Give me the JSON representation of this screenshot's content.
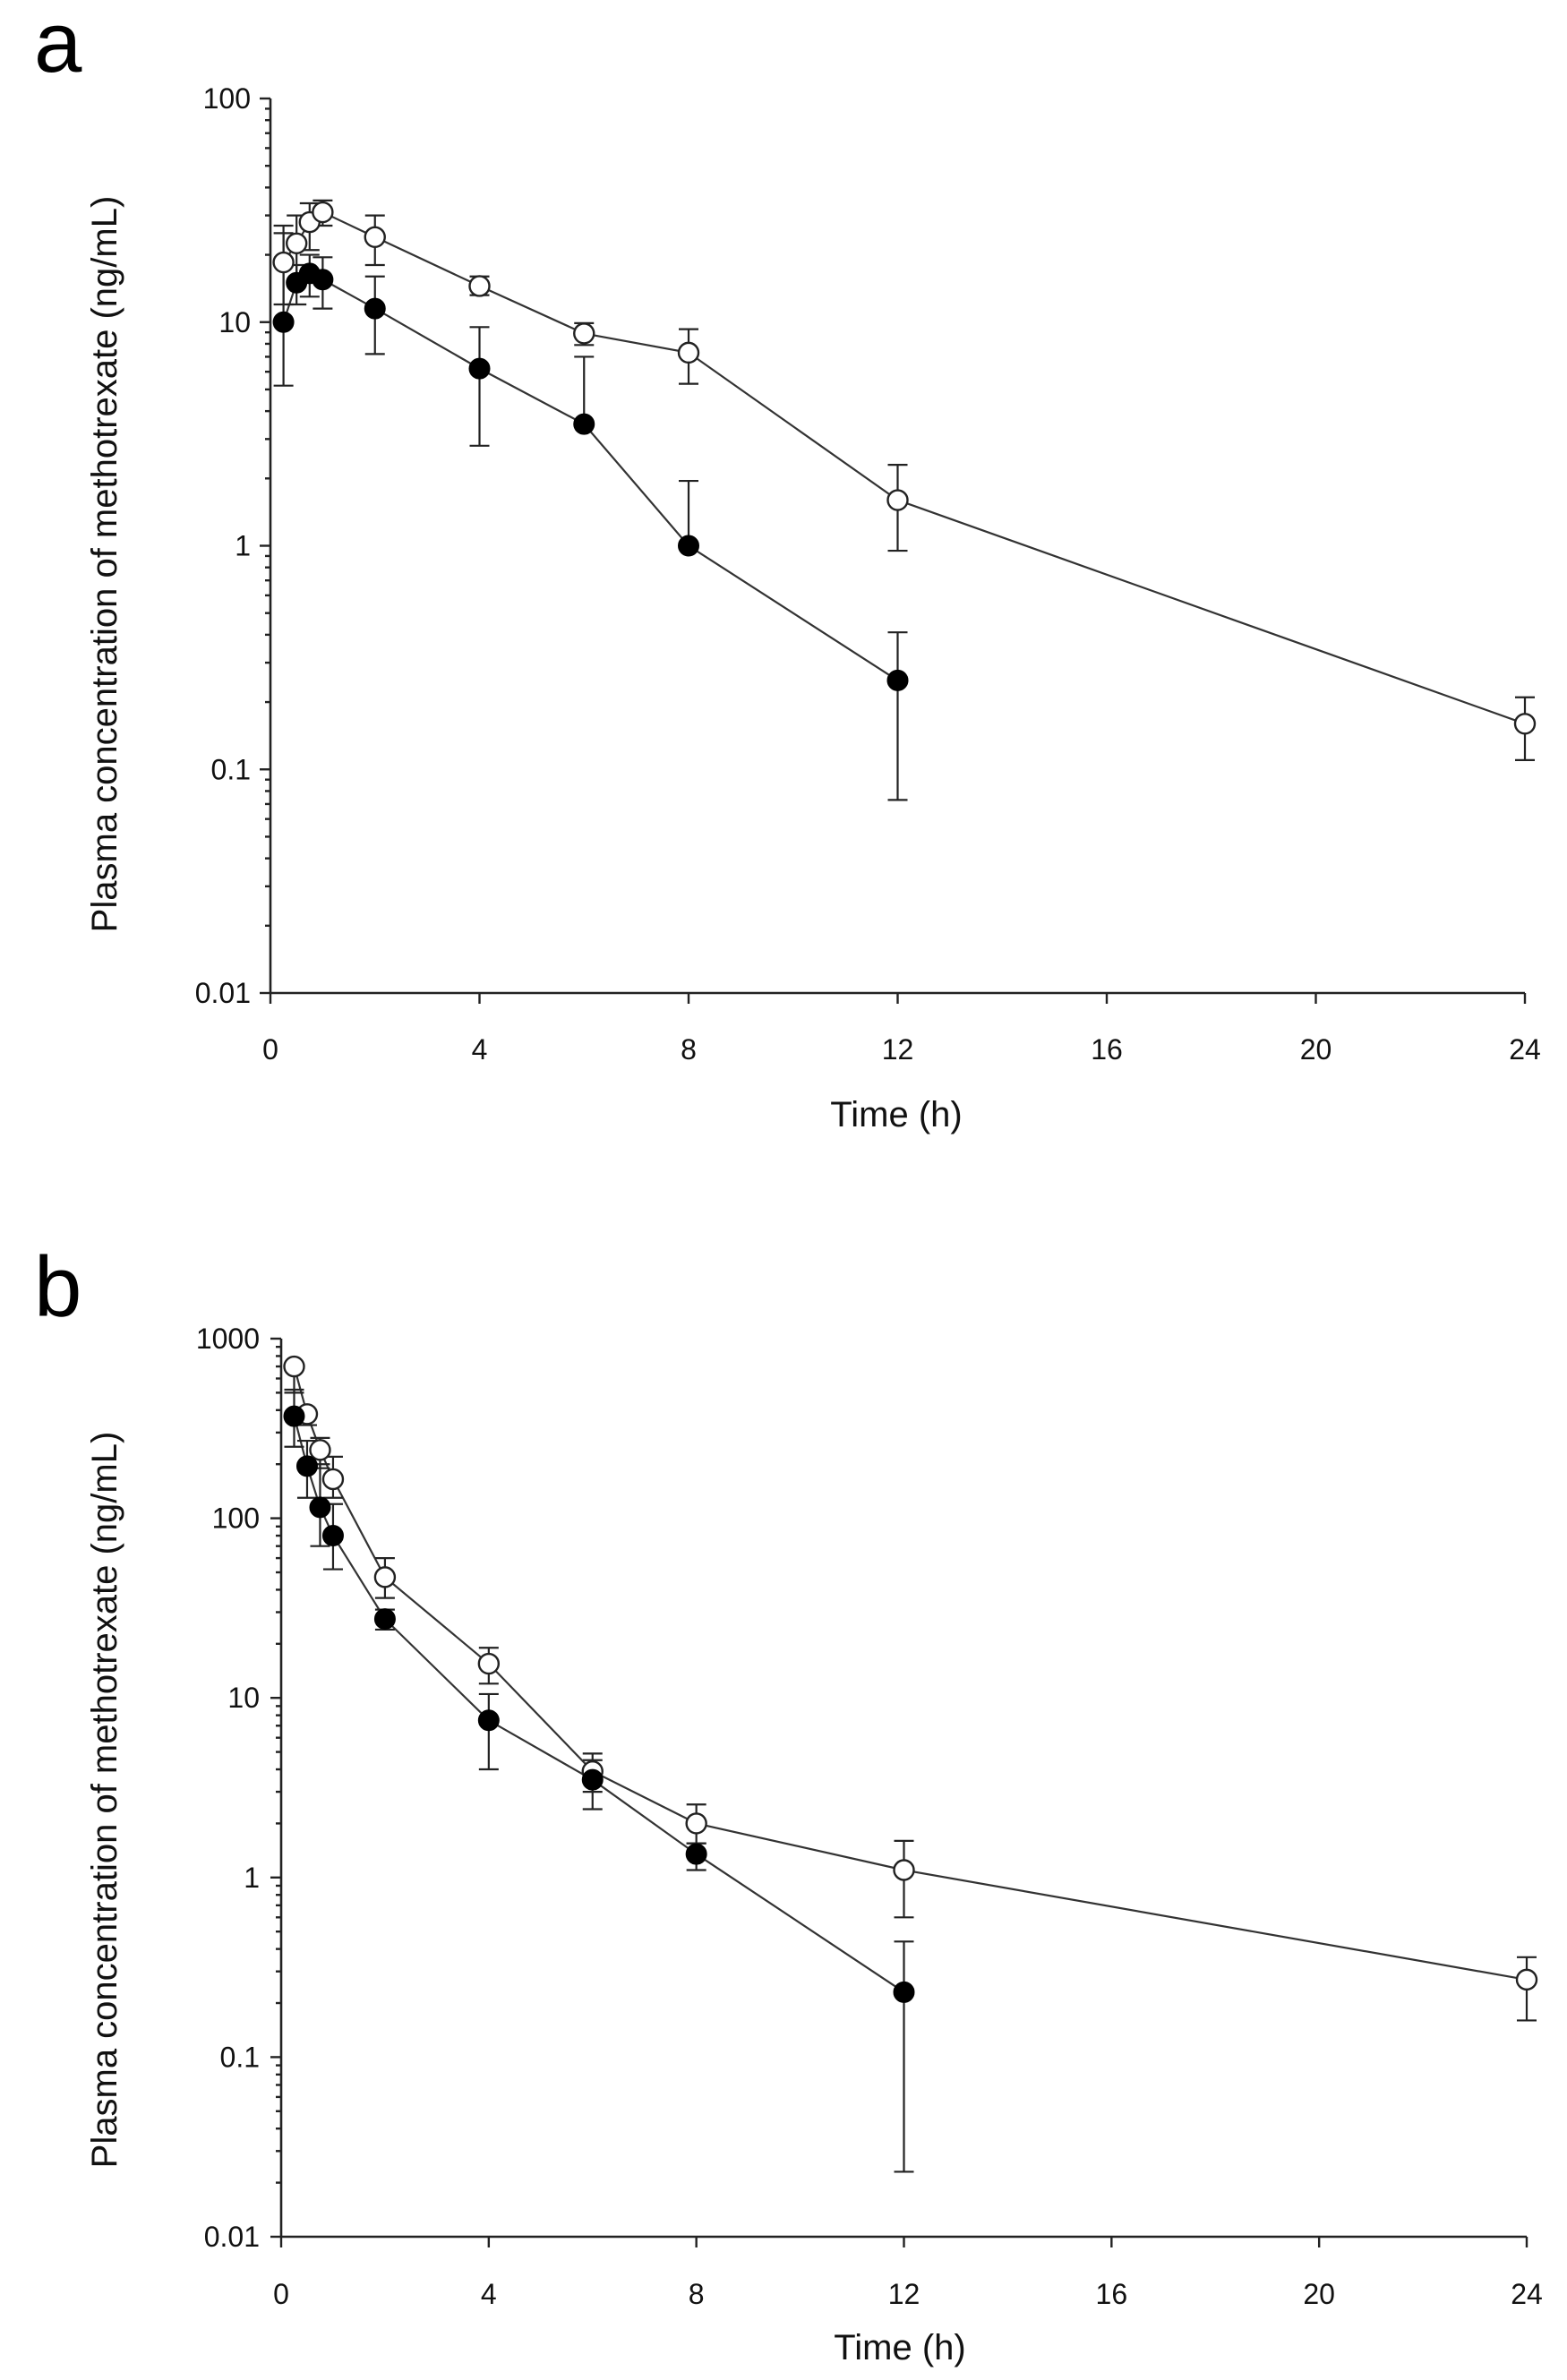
{
  "chart_data": [
    {
      "type": "line",
      "panel_label": "a",
      "xlabel": "Time (h)",
      "ylabel": "Plasma concentration of methotrexate (ng/mL)",
      "y_scale": "log",
      "ylim": [
        0.01,
        100
      ],
      "xlim": [
        0,
        24
      ],
      "x_ticks": [
        0,
        4,
        8,
        12,
        16,
        20,
        24
      ],
      "y_ticks": [
        0.01,
        0.1,
        1,
        10,
        100
      ],
      "y_tick_labels": [
        "0.01",
        "0.1",
        "1",
        "10",
        "100"
      ],
      "series": [
        {
          "name": "open circles",
          "marker": "open",
          "x": [
            0.25,
            0.5,
            0.75,
            1,
            2,
            4,
            6,
            8,
            12,
            24
          ],
          "y": [
            18.5,
            22.5,
            28,
            31,
            24,
            14.5,
            8.9,
            7.3,
            1.6,
            0.16
          ],
          "err_low": [
            12,
            15,
            21,
            27,
            18,
            13.2,
            7.9,
            5.3,
            0.95,
            0.11
          ],
          "err_high": [
            25,
            30,
            34,
            35,
            30,
            16,
            9.9,
            9.3,
            2.3,
            0.21
          ]
        },
        {
          "name": "filled circles",
          "marker": "filled",
          "x": [
            0.25,
            0.5,
            0.75,
            1,
            2,
            4,
            6,
            8,
            12
          ],
          "y": [
            10,
            15,
            16.5,
            15.5,
            11.5,
            6.2,
            3.5,
            1.0,
            0.25
          ],
          "err_low": [
            5.2,
            12,
            13,
            11.5,
            7.2,
            2.8,
            3.4,
            0.99,
            0.073
          ],
          "err_high": [
            27,
            18,
            20,
            19.5,
            16,
            9.5,
            7.0,
            1.95,
            0.41
          ]
        }
      ]
    },
    {
      "type": "line",
      "panel_label": "b",
      "xlabel": "Time (h)",
      "ylabel": "Plasma concentration of methotrexate (ng/mL)",
      "y_scale": "log",
      "ylim": [
        0.01,
        1000
      ],
      "xlim": [
        0,
        24
      ],
      "x_ticks": [
        0,
        4,
        8,
        12,
        16,
        20,
        24
      ],
      "y_ticks": [
        0.01,
        0.1,
        1,
        10,
        100,
        1000
      ],
      "y_tick_labels": [
        "0.01",
        "0.1",
        "1",
        "10",
        "100",
        "1000"
      ],
      "series": [
        {
          "name": "open circles",
          "marker": "open",
          "x": [
            0.25,
            0.5,
            0.75,
            1,
            2,
            4,
            6,
            8,
            12,
            24
          ],
          "y": [
            700,
            380,
            240,
            165,
            47,
            15.5,
            3.9,
            2.0,
            1.1,
            0.27
          ],
          "err_low": [
            500,
            330,
            190,
            130,
            36,
            12,
            3.0,
            1.55,
            0.6,
            0.16
          ],
          "err_high": [
            720,
            400,
            280,
            220,
            60,
            19,
            4.9,
            2.55,
            1.6,
            0.36
          ]
        },
        {
          "name": "filled circles",
          "marker": "filled",
          "x": [
            0.25,
            0.5,
            0.75,
            1,
            2,
            4,
            6,
            8,
            12
          ],
          "y": [
            370,
            195,
            115,
            80,
            27.5,
            7.5,
            3.5,
            1.35,
            0.23
          ],
          "err_low": [
            250,
            130,
            70,
            52,
            24,
            4.0,
            2.4,
            1.1,
            0.023
          ],
          "err_high": [
            520,
            270,
            200,
            120,
            31,
            10.5,
            4.5,
            1.55,
            0.44
          ]
        }
      ]
    }
  ]
}
